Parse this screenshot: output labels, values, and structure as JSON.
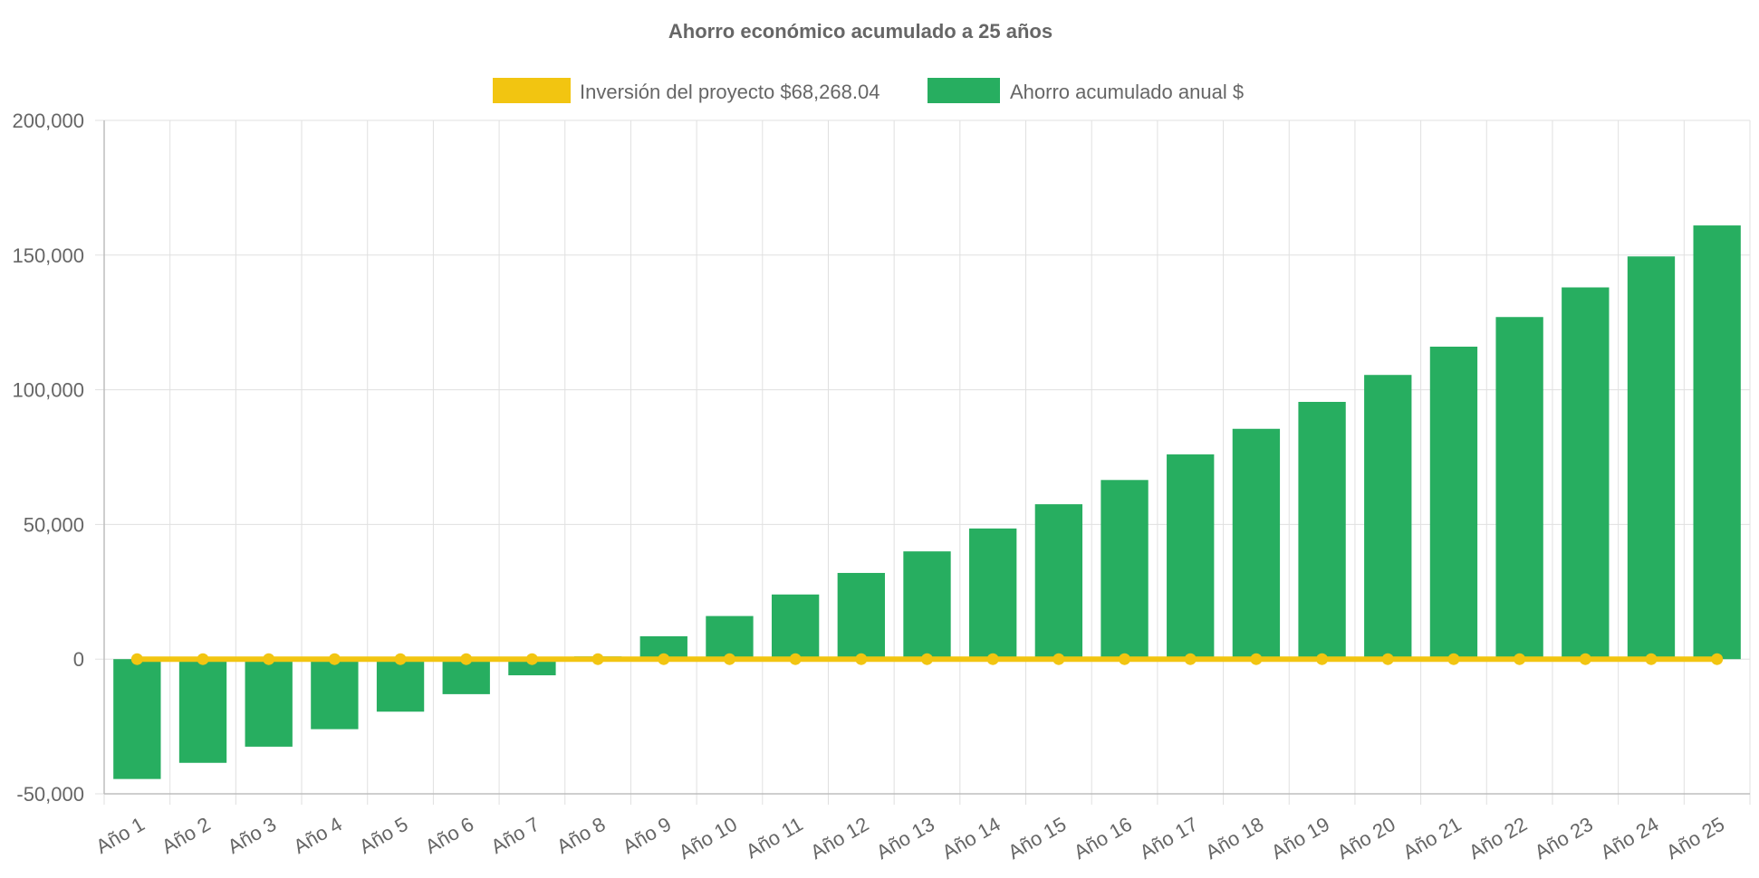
{
  "chart_data": {
    "type": "bar",
    "title": "Ahorro económico acumulado a 25 años",
    "legend_position": "top-center",
    "grid": true,
    "ylim": [
      -50000,
      200000
    ],
    "yticks": [
      -50000,
      0,
      50000,
      100000,
      150000,
      200000
    ],
    "ytick_labels": [
      "-50,000",
      "0",
      "50,000",
      "100,000",
      "150,000",
      "200,000"
    ],
    "categories": [
      "Año 1",
      "Año 2",
      "Año 3",
      "Año 4",
      "Año 5",
      "Año 6",
      "Año 7",
      "Año 8",
      "Año 9",
      "Año 10",
      "Año 11",
      "Año 12",
      "Año 13",
      "Año 14",
      "Año 15",
      "Año 16",
      "Año 17",
      "Año 18",
      "Año 19",
      "Año 20",
      "Año 21",
      "Año 22",
      "Año 23",
      "Año 24",
      "Año 25"
    ],
    "series": [
      {
        "name": "Inversión del proyecto $68,268.04",
        "type": "line",
        "color": "#f2c511",
        "values": [
          0,
          0,
          0,
          0,
          0,
          0,
          0,
          0,
          0,
          0,
          0,
          0,
          0,
          0,
          0,
          0,
          0,
          0,
          0,
          0,
          0,
          0,
          0,
          0,
          0
        ]
      },
      {
        "name": "Ahorro acumulado anual $",
        "type": "bar",
        "color": "#27ae60",
        "values": [
          -44500,
          -38500,
          -32500,
          -26000,
          -19500,
          -13000,
          -6000,
          1000,
          8500,
          16000,
          24000,
          32000,
          40000,
          48500,
          57500,
          66500,
          76000,
          85500,
          95500,
          105500,
          116000,
          127000,
          138000,
          149500,
          161000
        ]
      }
    ]
  }
}
